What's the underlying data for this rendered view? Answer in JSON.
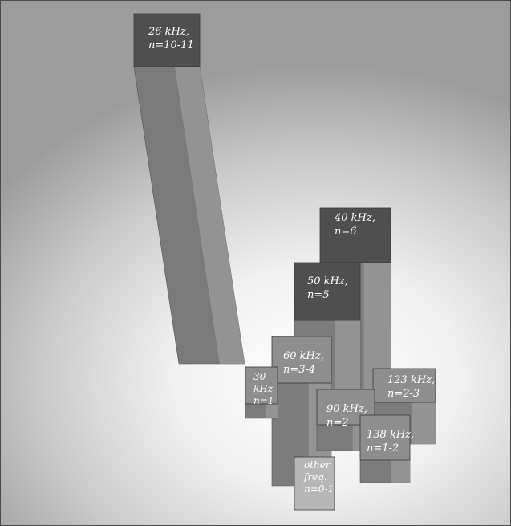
{
  "chart_data": {
    "type": "bar",
    "title": "",
    "categories": [
      "26 kHz, n=10-11",
      "40 kHz, n=6",
      "50 kHz, n=5",
      "60 kHz, n=3-4",
      "30 kHz, n=1",
      "123 kHz, n=2-3",
      "90 kHz, n=2",
      "138 kHz, n=1-2",
      "other freq. n=0-1"
    ],
    "values": [
      10.5,
      6,
      5,
      3.5,
      1,
      2.5,
      2,
      1.5,
      0.5
    ],
    "bars": [
      {
        "label": [
          "26 kHz,",
          "n=10-11"
        ],
        "frequency": "26 kHz",
        "n": "10-11",
        "value": 10.5
      },
      {
        "label": [
          "40 kHz,",
          "n=6"
        ],
        "frequency": "40 kHz",
        "n": "6",
        "value": 6
      },
      {
        "label": [
          "50 kHz,",
          "n=5"
        ],
        "frequency": "50 kHz",
        "n": "5",
        "value": 5
      },
      {
        "label": [
          "60 kHz,",
          "n=3-4"
        ],
        "frequency": "60 kHz",
        "n": "3-4",
        "value": 3.5
      },
      {
        "label": [
          "30",
          "kHz",
          "n=1"
        ],
        "frequency": "30 kHz",
        "n": "1",
        "value": 1
      },
      {
        "label": [
          "123 kHz,",
          "n=2-3"
        ],
        "frequency": "123 kHz",
        "n": "2-3",
        "value": 2.5
      },
      {
        "label": [
          "90 kHz,",
          "n=2"
        ],
        "frequency": "90 kHz",
        "n": "2",
        "value": 2
      },
      {
        "label": [
          "138 kHz,",
          "n=1-2"
        ],
        "frequency": "138 kHz",
        "n": "1-2",
        "value": 1.5
      },
      {
        "label": [
          "other",
          "freq.",
          "n=0-1"
        ],
        "frequency": "other freq.",
        "n": "0-1",
        "value": 0.5
      }
    ],
    "xlabel": "",
    "ylabel": "",
    "grid": false,
    "legend": "none",
    "colors": {
      "top_dark": "#4f4f4f",
      "top_light": "#8e8e8e",
      "top_pale": "#b6b6b6",
      "side_left": "#7c7c7c",
      "side_right": "#989898"
    }
  }
}
